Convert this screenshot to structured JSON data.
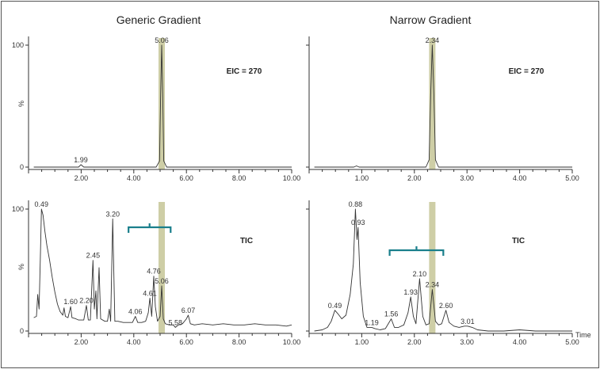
{
  "chart_data": [
    {
      "type": "line",
      "title": "Generic Gradient",
      "annotation": "EIC = 270",
      "ylabel": "%",
      "xlim": [
        0,
        10
      ],
      "ylim": [
        0,
        100
      ],
      "xticks": [
        "2.00",
        "4.00",
        "6.00",
        "8.00",
        "10.00"
      ],
      "yticks": [
        "0",
        "100"
      ],
      "highlight_x": 5.06,
      "peak_labels": [
        {
          "text": "5.06",
          "x": 5.06,
          "y": 100
        },
        {
          "text": "1.99",
          "x": 1.99,
          "y": 2
        }
      ],
      "series": [
        {
          "points": [
            [
              0.2,
              0
            ],
            [
              1.9,
              0
            ],
            [
              1.99,
              2
            ],
            [
              2.1,
              0
            ],
            [
              4.85,
              0
            ],
            [
              4.98,
              5
            ],
            [
              5.02,
              60
            ],
            [
              5.06,
              100
            ],
            [
              5.1,
              60
            ],
            [
              5.14,
              5
            ],
            [
              5.25,
              0
            ],
            [
              10,
              0
            ]
          ]
        }
      ]
    },
    {
      "type": "line",
      "title": "Narrow Gradient",
      "annotation": "EIC = 270",
      "ylabel": "",
      "xlim": [
        0,
        5
      ],
      "ylim": [
        0,
        100
      ],
      "xticks": [
        "1.00",
        "2.00",
        "3.00",
        "4.00",
        "5.00"
      ],
      "yticks": [],
      "highlight_x": 2.34,
      "peak_labels": [
        {
          "text": "2.34",
          "x": 2.34,
          "y": 100
        }
      ],
      "series": [
        {
          "points": [
            [
              0.1,
              0
            ],
            [
              0.85,
              0
            ],
            [
              0.9,
              1
            ],
            [
              0.95,
              0
            ],
            [
              2.22,
              0
            ],
            [
              2.28,
              6
            ],
            [
              2.31,
              60
            ],
            [
              2.34,
              100
            ],
            [
              2.37,
              60
            ],
            [
              2.4,
              6
            ],
            [
              2.46,
              0
            ],
            [
              5,
              0
            ]
          ]
        }
      ]
    },
    {
      "type": "line",
      "title": "",
      "annotation": "TIC",
      "ylabel": "%",
      "xlim": [
        0,
        10
      ],
      "ylim": [
        0,
        100
      ],
      "xticks": [
        "2.00",
        "4.00",
        "6.00",
        "8.00",
        "10.00"
      ],
      "yticks": [
        "0",
        "100"
      ],
      "highlight_x": 5.06,
      "bracket": [
        3.8,
        5.4
      ],
      "peak_labels": [
        {
          "text": "0.49",
          "x": 0.49,
          "y": 100
        },
        {
          "text": "1.60",
          "x": 1.6,
          "y": 20
        },
        {
          "text": "2.20",
          "x": 2.2,
          "y": 21
        },
        {
          "text": "2.45",
          "x": 2.45,
          "y": 58
        },
        {
          "text": "3.20",
          "x": 3.2,
          "y": 92
        },
        {
          "text": "4.06",
          "x": 4.06,
          "y": 12
        },
        {
          "text": "4.61",
          "x": 4.61,
          "y": 27
        },
        {
          "text": "4.76",
          "x": 4.76,
          "y": 45
        },
        {
          "text": "5.06",
          "x": 5.06,
          "y": 37
        },
        {
          "text": "5.58",
          "x": 5.58,
          "y": 3
        },
        {
          "text": "6.07",
          "x": 6.07,
          "y": 13
        }
      ],
      "series": [
        {
          "points": [
            [
              0.2,
              11
            ],
            [
              0.3,
              12
            ],
            [
              0.35,
              30
            ],
            [
              0.4,
              18
            ],
            [
              0.45,
              60
            ],
            [
              0.49,
              100
            ],
            [
              0.55,
              95
            ],
            [
              0.62,
              82
            ],
            [
              0.7,
              70
            ],
            [
              0.8,
              58
            ],
            [
              0.9,
              44
            ],
            [
              1,
              32
            ],
            [
              1.1,
              22
            ],
            [
              1.2,
              16
            ],
            [
              1.3,
              13
            ],
            [
              1.35,
              19
            ],
            [
              1.4,
              12
            ],
            [
              1.5,
              11
            ],
            [
              1.6,
              20
            ],
            [
              1.65,
              11
            ],
            [
              1.8,
              10
            ],
            [
              1.9,
              9
            ],
            [
              2,
              9
            ],
            [
              2.1,
              9
            ],
            [
              2.2,
              21
            ],
            [
              2.27,
              9
            ],
            [
              2.35,
              9
            ],
            [
              2.45,
              58
            ],
            [
              2.5,
              18
            ],
            [
              2.56,
              33
            ],
            [
              2.6,
              10
            ],
            [
              2.68,
              52
            ],
            [
              2.74,
              10
            ],
            [
              2.9,
              8
            ],
            [
              3,
              8
            ],
            [
              3.07,
              18
            ],
            [
              3.12,
              8
            ],
            [
              3.2,
              92
            ],
            [
              3.28,
              8
            ],
            [
              3.4,
              8
            ],
            [
              3.6,
              7
            ],
            [
              3.8,
              7
            ],
            [
              3.95,
              7
            ],
            [
              4.06,
              12
            ],
            [
              4.15,
              7
            ],
            [
              4.3,
              7
            ],
            [
              4.45,
              8
            ],
            [
              4.55,
              15
            ],
            [
              4.61,
              27
            ],
            [
              4.68,
              12
            ],
            [
              4.76,
              45
            ],
            [
              4.82,
              20
            ],
            [
              4.9,
              8
            ],
            [
              5,
              12
            ],
            [
              5.06,
              37
            ],
            [
              5.12,
              10
            ],
            [
              5.2,
              6
            ],
            [
              5.35,
              5
            ],
            [
              5.5,
              5
            ],
            [
              5.58,
              3
            ],
            [
              5.7,
              5
            ],
            [
              5.85,
              6
            ],
            [
              6,
              10
            ],
            [
              6.07,
              13
            ],
            [
              6.15,
              6
            ],
            [
              6.3,
              5
            ],
            [
              6.6,
              6
            ],
            [
              7,
              5
            ],
            [
              7.4,
              6
            ],
            [
              7.8,
              5
            ],
            [
              8.2,
              5
            ],
            [
              8.6,
              6
            ],
            [
              9,
              5
            ],
            [
              9.4,
              5
            ],
            [
              9.8,
              4
            ],
            [
              10,
              5
            ]
          ]
        }
      ]
    },
    {
      "type": "line",
      "title": "",
      "annotation": "TIC",
      "ylabel": "",
      "xlabel": "Time",
      "xlim": [
        0,
        5
      ],
      "ylim": [
        0,
        100
      ],
      "xticks": [
        "1.00",
        "2.00",
        "3.00",
        "4.00",
        "5.00"
      ],
      "yticks": [],
      "highlight_x": 2.34,
      "bracket": [
        1.53,
        2.55
      ],
      "peak_labels": [
        {
          "text": "0.49",
          "x": 0.49,
          "y": 17
        },
        {
          "text": "0.88",
          "x": 0.88,
          "y": 100
        },
        {
          "text": "0.93",
          "x": 0.93,
          "y": 85
        },
        {
          "text": "1.19",
          "x": 1.19,
          "y": 3
        },
        {
          "text": "1.56",
          "x": 1.56,
          "y": 10
        },
        {
          "text": "1.93",
          "x": 1.93,
          "y": 28
        },
        {
          "text": "2.10",
          "x": 2.1,
          "y": 43
        },
        {
          "text": "2.34",
          "x": 2.34,
          "y": 34
        },
        {
          "text": "2.60",
          "x": 2.6,
          "y": 17
        },
        {
          "text": "3.01",
          "x": 3.01,
          "y": 4
        }
      ],
      "series": [
        {
          "points": [
            [
              0.1,
              0
            ],
            [
              0.25,
              1
            ],
            [
              0.35,
              3
            ],
            [
              0.42,
              8
            ],
            [
              0.49,
              17
            ],
            [
              0.55,
              14
            ],
            [
              0.62,
              10
            ],
            [
              0.7,
              13
            ],
            [
              0.78,
              30
            ],
            [
              0.84,
              55
            ],
            [
              0.88,
              100
            ],
            [
              0.91,
              75
            ],
            [
              0.93,
              85
            ],
            [
              0.97,
              40
            ],
            [
              1.03,
              12
            ],
            [
              1.1,
              3
            ],
            [
              1.19,
              3
            ],
            [
              1.25,
              2
            ],
            [
              1.35,
              1
            ],
            [
              1.45,
              2
            ],
            [
              1.56,
              10
            ],
            [
              1.62,
              3
            ],
            [
              1.7,
              3
            ],
            [
              1.8,
              5
            ],
            [
              1.88,
              15
            ],
            [
              1.93,
              28
            ],
            [
              1.98,
              12
            ],
            [
              2.03,
              6
            ],
            [
              2.1,
              43
            ],
            [
              2.16,
              12
            ],
            [
              2.22,
              5
            ],
            [
              2.28,
              6
            ],
            [
              2.34,
              34
            ],
            [
              2.4,
              8
            ],
            [
              2.46,
              5
            ],
            [
              2.52,
              6
            ],
            [
              2.6,
              17
            ],
            [
              2.66,
              7
            ],
            [
              2.75,
              4
            ],
            [
              2.85,
              3
            ],
            [
              2.95,
              4
            ],
            [
              3.01,
              4
            ],
            [
              3.1,
              3
            ],
            [
              3.2,
              1
            ],
            [
              3.4,
              0
            ],
            [
              3.7,
              0
            ],
            [
              4,
              1
            ],
            [
              4.3,
              0
            ],
            [
              4.6,
              0
            ],
            [
              5,
              0
            ]
          ]
        }
      ]
    }
  ]
}
